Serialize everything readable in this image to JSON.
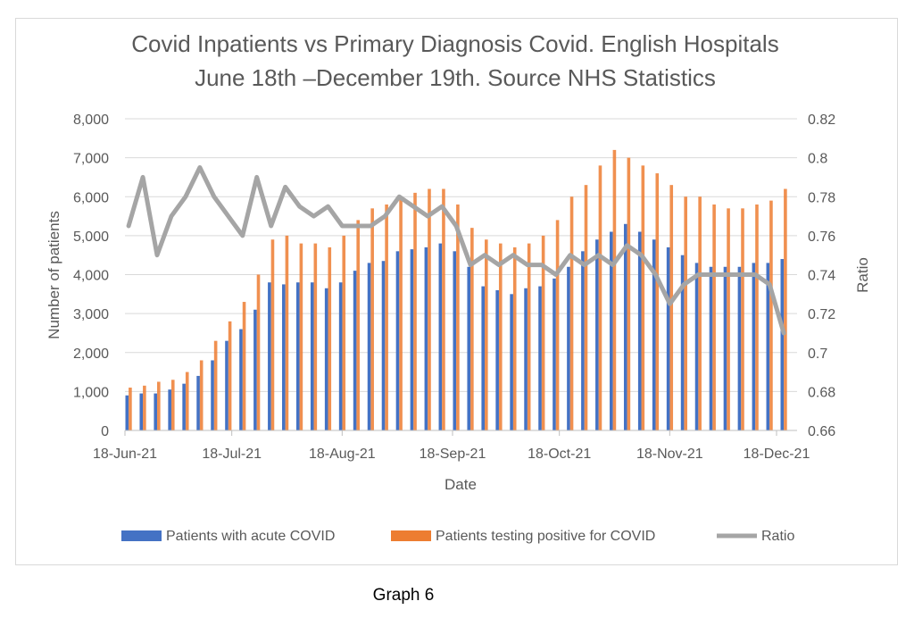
{
  "chart_data": {
    "type": "bar",
    "title_lines": [
      "Covid Inpatients vs Primary Diagnosis Covid. English Hospitals",
      "June 18th –December 19th. Source NHS Statistics"
    ],
    "xlabel": "Date",
    "ylabel": "Number of patients",
    "y2label": "Ratio",
    "ylim": [
      0,
      8000
    ],
    "y2lim": [
      0.66,
      0.82
    ],
    "yticks": [
      "0",
      "1,000",
      "2,000",
      "3,000",
      "4,000",
      "5,000",
      "6,000",
      "7,000",
      "8,000"
    ],
    "y2ticks": [
      "0.66",
      "0.68",
      "0.7",
      "0.72",
      "0.74",
      "0.76",
      "0.78",
      "0.8",
      "0.82"
    ],
    "xticks": [
      {
        "label": "18-Jun-21",
        "day": 0
      },
      {
        "label": "18-Jul-21",
        "day": 30
      },
      {
        "label": "18-Aug-21",
        "day": 61
      },
      {
        "label": "18-Sep-21",
        "day": 92
      },
      {
        "label": "18-Oct-21",
        "day": 122
      },
      {
        "label": "18-Nov-21",
        "day": 153
      },
      {
        "label": "18-Dec-21",
        "day": 183
      }
    ],
    "grid": true,
    "legend_position": "bottom",
    "x_days": [
      0,
      4,
      8,
      12,
      16,
      20,
      24,
      28,
      32,
      36,
      40,
      44,
      48,
      52,
      56,
      60,
      64,
      68,
      72,
      76,
      80,
      84,
      88,
      92,
      96,
      100,
      104,
      108,
      112,
      116,
      120,
      124,
      128,
      132,
      136,
      140,
      144,
      148,
      152,
      156,
      160,
      164,
      168,
      172,
      176,
      180,
      184
    ],
    "series": [
      {
        "name": "Patients with acute COVID",
        "type": "bar",
        "axis": "left",
        "color": "#4472C4",
        "values": [
          900,
          950,
          950,
          1050,
          1200,
          1400,
          1800,
          2300,
          2600,
          3100,
          3800,
          3750,
          3800,
          3800,
          3650,
          3800,
          4100,
          4300,
          4350,
          4600,
          4650,
          4700,
          4800,
          4600,
          4200,
          3700,
          3600,
          3500,
          3650,
          3700,
          3900,
          4200,
          4600,
          4900,
          5100,
          5300,
          5100,
          4900,
          4700,
          4500,
          4300,
          4200,
          4200,
          4200,
          4300,
          4300,
          4400
        ]
      },
      {
        "name": "Patients testing positive for COVID",
        "type": "bar",
        "axis": "left",
        "color": "#ED7D31",
        "values": [
          1100,
          1150,
          1250,
          1300,
          1500,
          1800,
          2300,
          2800,
          3300,
          4000,
          4900,
          5000,
          4800,
          4800,
          4700,
          5000,
          5400,
          5700,
          5800,
          6000,
          6100,
          6200,
          6200,
          5800,
          5200,
          4900,
          4800,
          4700,
          4800,
          5000,
          5400,
          6000,
          6300,
          6800,
          7200,
          7000,
          6800,
          6600,
          6300,
          6000,
          6000,
          5800,
          5700,
          5700,
          5800,
          5900,
          6200
        ]
      },
      {
        "name": "Ratio",
        "type": "line",
        "axis": "right",
        "color": "#A5A5A5",
        "values": [
          0.765,
          0.79,
          0.75,
          0.77,
          0.78,
          0.795,
          0.78,
          0.77,
          0.76,
          0.79,
          0.765,
          0.785,
          0.775,
          0.77,
          0.775,
          0.765,
          0.765,
          0.765,
          0.77,
          0.78,
          0.775,
          0.77,
          0.775,
          0.765,
          0.745,
          0.75,
          0.745,
          0.75,
          0.745,
          0.745,
          0.74,
          0.75,
          0.745,
          0.75,
          0.745,
          0.755,
          0.75,
          0.74,
          0.725,
          0.735,
          0.74,
          0.74,
          0.74,
          0.74,
          0.74,
          0.735,
          0.71
        ]
      }
    ]
  },
  "caption": "Graph 6"
}
